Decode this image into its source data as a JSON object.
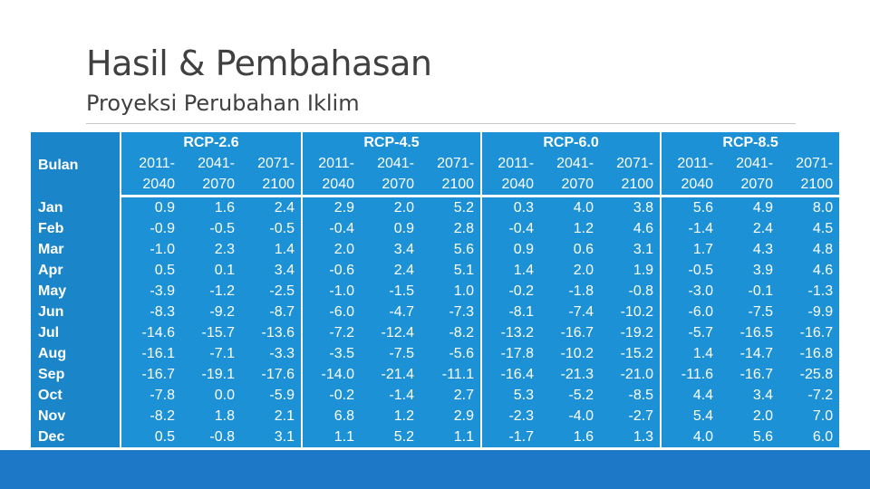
{
  "slide": {
    "title": "Hasil & Pembahasan",
    "subtitle": "Proyeksi Perubahan Iklim"
  },
  "table": {
    "row_header": "Bulan",
    "groups": [
      {
        "name": "RCP-2.6",
        "periods": [
          [
            "2011-",
            "2040"
          ],
          [
            "2041-",
            "2070"
          ],
          [
            "2071-",
            "2100"
          ]
        ]
      },
      {
        "name": "RCP-4.5",
        "periods": [
          [
            "2011-",
            "2040"
          ],
          [
            "2041-",
            "2070"
          ],
          [
            "2071-",
            "2100"
          ]
        ]
      },
      {
        "name": "RCP-6.0",
        "periods": [
          [
            "2011-",
            "2040"
          ],
          [
            "2041-",
            "2070"
          ],
          [
            "2071-",
            "2100"
          ]
        ]
      },
      {
        "name": "RCP-8.5",
        "periods": [
          [
            "2011-",
            "2040"
          ],
          [
            "2041-",
            "2070"
          ],
          [
            "2071-",
            "2100"
          ]
        ]
      }
    ],
    "rows": [
      {
        "month": "Jan",
        "values": [
          "0.9",
          "1.6",
          "2.4",
          "2.9",
          "2.0",
          "5.2",
          "0.3",
          "4.0",
          "3.8",
          "5.6",
          "4.9",
          "8.0"
        ]
      },
      {
        "month": "Feb",
        "values": [
          "-0.9",
          "-0.5",
          "-0.5",
          "-0.4",
          "0.9",
          "2.8",
          "-0.4",
          "1.2",
          "4.6",
          "-1.4",
          "2.4",
          "4.5"
        ]
      },
      {
        "month": "Mar",
        "values": [
          "-1.0",
          "2.3",
          "1.4",
          "2.0",
          "3.4",
          "5.6",
          "0.9",
          "0.6",
          "3.1",
          "1.7",
          "4.3",
          "4.8"
        ]
      },
      {
        "month": "Apr",
        "values": [
          "0.5",
          "0.1",
          "3.4",
          "-0.6",
          "2.4",
          "5.1",
          "1.4",
          "2.0",
          "1.9",
          "-0.5",
          "3.9",
          "4.6"
        ]
      },
      {
        "month": "May",
        "values": [
          "-3.9",
          "-1.2",
          "-2.5",
          "-1.0",
          "-1.5",
          "1.0",
          "-0.2",
          "-1.8",
          "-0.8",
          "-3.0",
          "-0.1",
          "-1.3"
        ]
      },
      {
        "month": "Jun",
        "values": [
          "-8.3",
          "-9.2",
          "-8.7",
          "-6.0",
          "-4.7",
          "-7.3",
          "-8.1",
          "-7.4",
          "-10.2",
          "-6.0",
          "-7.5",
          "-9.9"
        ]
      },
      {
        "month": "Jul",
        "values": [
          "-14.6",
          "-15.7",
          "-13.6",
          "-7.2",
          "-12.4",
          "-8.2",
          "-13.2",
          "-16.7",
          "-19.2",
          "-5.7",
          "-16.5",
          "-16.7"
        ]
      },
      {
        "month": "Aug",
        "values": [
          "-16.1",
          "-7.1",
          "-3.3",
          "-3.5",
          "-7.5",
          "-5.6",
          "-17.8",
          "-10.2",
          "-15.2",
          "1.4",
          "-14.7",
          "-16.8"
        ]
      },
      {
        "month": "Sep",
        "values": [
          "-16.7",
          "-19.1",
          "-17.6",
          "-14.0",
          "-21.4",
          "-11.1",
          "-16.4",
          "-21.3",
          "-21.0",
          "-11.6",
          "-16.7",
          "-25.8"
        ]
      },
      {
        "month": "Oct",
        "values": [
          "-7.8",
          "0.0",
          "-5.9",
          "-0.2",
          "-1.4",
          "2.7",
          "5.3",
          "-5.2",
          "-8.5",
          "4.4",
          "3.4",
          "-7.2"
        ]
      },
      {
        "month": "Nov",
        "values": [
          "-8.2",
          "1.8",
          "2.1",
          "6.8",
          "1.2",
          "2.9",
          "-2.3",
          "-4.0",
          "-2.7",
          "5.4",
          "2.0",
          "7.0"
        ]
      },
      {
        "month": "Dec",
        "values": [
          "0.5",
          "-0.8",
          "3.1",
          "1.1",
          "5.2",
          "1.1",
          "-1.7",
          "1.6",
          "1.3",
          "4.0",
          "5.6",
          "6.0"
        ]
      }
    ]
  },
  "colors": {
    "table_fill": "#1c91d6",
    "header_column_fill": "#1a85c9",
    "bottom_bar": "#1d78c8",
    "title_text": "#404040"
  }
}
